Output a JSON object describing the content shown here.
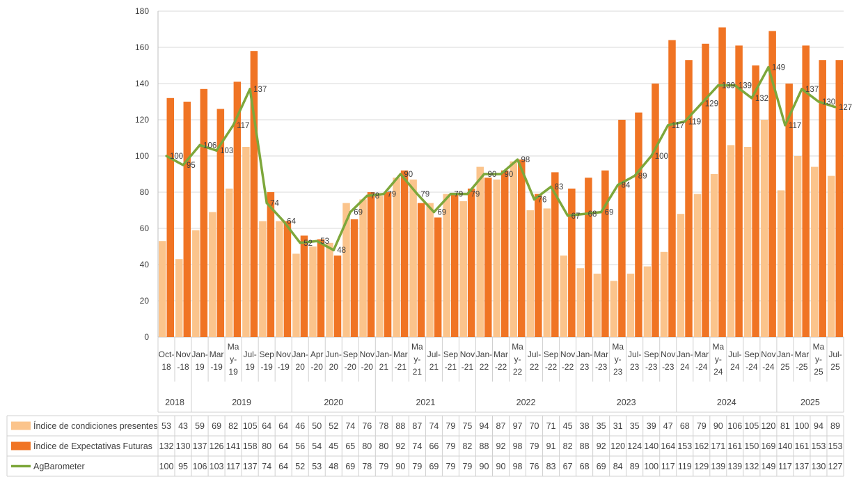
{
  "chart_data": {
    "type": "bar",
    "categories": [
      "Oct-18",
      "Nov-18",
      "Jan-19",
      "Mar-19",
      "May-19",
      "Jul-19",
      "Sep-19",
      "Nov-19",
      "Jan-20",
      "Apr-20",
      "Jun-20",
      "Sep-20",
      "Nov-20",
      "Jan-21",
      "Mar-21",
      "May-21",
      "Jul-21",
      "Sep-21",
      "Nov-21",
      "Jan-22",
      "Mar-22",
      "May-22",
      "Jul-22",
      "Sep-22",
      "Nov-22",
      "Jan-23",
      "Mar-23",
      "May-23",
      "Jul-23",
      "Sep-23",
      "Nov-23",
      "Jan-24",
      "Mar-24",
      "May-24",
      "Jul-24",
      "Sep-24",
      "Nov-24",
      "Jan-25",
      "Mar-25",
      "May-25",
      "Jul-25"
    ],
    "category_labels": [
      [
        "Oct-",
        "18"
      ],
      [
        "Nov",
        "-18"
      ],
      [
        "Jan-",
        "19"
      ],
      [
        "Mar",
        "-19"
      ],
      [
        "Ma",
        "y-",
        "19"
      ],
      [
        "Jul-",
        "19"
      ],
      [
        "Sep",
        "-19"
      ],
      [
        "Nov",
        "-19"
      ],
      [
        "Jan-",
        "20"
      ],
      [
        "Apr",
        "-20"
      ],
      [
        "Jun-",
        "20"
      ],
      [
        "Sep",
        "-20"
      ],
      [
        "Nov",
        "-20"
      ],
      [
        "Jan-",
        "21"
      ],
      [
        "Mar",
        "-21"
      ],
      [
        "Ma",
        "y-",
        "21"
      ],
      [
        "Jul-",
        "21"
      ],
      [
        "Sep",
        "-21"
      ],
      [
        "Nov",
        "-21"
      ],
      [
        "Jan-",
        "22"
      ],
      [
        "Mar",
        "-22"
      ],
      [
        "Ma",
        "y-",
        "22"
      ],
      [
        "Jul-",
        "22"
      ],
      [
        "Sep",
        "-22"
      ],
      [
        "Nov",
        "-22"
      ],
      [
        "Jan-",
        "23"
      ],
      [
        "Mar",
        "-23"
      ],
      [
        "Ma",
        "y-",
        "23"
      ],
      [
        "Jul-",
        "23"
      ],
      [
        "Sep",
        "-23"
      ],
      [
        "Nov",
        "-23"
      ],
      [
        "Jan-",
        "24"
      ],
      [
        "Mar",
        "-24"
      ],
      [
        "Ma",
        "y-",
        "24"
      ],
      [
        "Jul-",
        "24"
      ],
      [
        "Sep",
        "-24"
      ],
      [
        "Nov",
        "-24"
      ],
      [
        "Jan-",
        "25"
      ],
      [
        "Mar",
        "-25"
      ],
      [
        "Ma",
        "y-",
        "25"
      ],
      [
        "Jul-",
        "25"
      ]
    ],
    "years": [
      {
        "label": "2018",
        "first": 0,
        "last": 1
      },
      {
        "label": "2019",
        "first": 2,
        "last": 7
      },
      {
        "label": "2020",
        "first": 8,
        "last": 12
      },
      {
        "label": "2021",
        "first": 13,
        "last": 18
      },
      {
        "label": "2022",
        "first": 19,
        "last": 24
      },
      {
        "label": "2023",
        "first": 25,
        "last": 30
      },
      {
        "label": "2024",
        "first": 31,
        "last": 36
      },
      {
        "label": "2025",
        "first": 37,
        "last": 40
      }
    ],
    "series": [
      {
        "name": "Índice de condiciones presentes",
        "type": "bar",
        "color": "#fbc48c",
        "values": [
          53,
          43,
          59,
          69,
          82,
          105,
          64,
          64,
          46,
          50,
          52,
          74,
          76,
          78,
          88,
          87,
          74,
          79,
          75,
          94,
          87,
          97,
          70,
          71,
          45,
          38,
          35,
          31,
          35,
          39,
          47,
          68,
          79,
          90,
          106,
          105,
          120,
          81,
          100,
          94,
          89
        ]
      },
      {
        "name": "Índice de Expectativas Futuras",
        "type": "bar",
        "color": "#f07424",
        "values": [
          132,
          130,
          137,
          126,
          141,
          158,
          80,
          64,
          56,
          54,
          45,
          65,
          80,
          80,
          92,
          74,
          66,
          79,
          82,
          88,
          92,
          98,
          79,
          91,
          82,
          88,
          92,
          120,
          124,
          140,
          164,
          153,
          162,
          171,
          161,
          150,
          169,
          140,
          161,
          153,
          153
        ]
      },
      {
        "name": "AgBarometer",
        "type": "line",
        "color": "#7da73b",
        "values": [
          100,
          95,
          106,
          103,
          117,
          137,
          74,
          64,
          52,
          53,
          48,
          69,
          78,
          79,
          90,
          79,
          69,
          79,
          79,
          90,
          90,
          98,
          76,
          83,
          67,
          68,
          69,
          84,
          89,
          100,
          117,
          119,
          129,
          139,
          139,
          132,
          149,
          117,
          137,
          130,
          127
        ]
      }
    ],
    "ylim": [
      0,
      180
    ],
    "yticks": [
      0,
      20,
      40,
      60,
      80,
      100,
      120,
      140,
      160,
      180
    ],
    "grid": true,
    "legend": "bottom data table"
  }
}
